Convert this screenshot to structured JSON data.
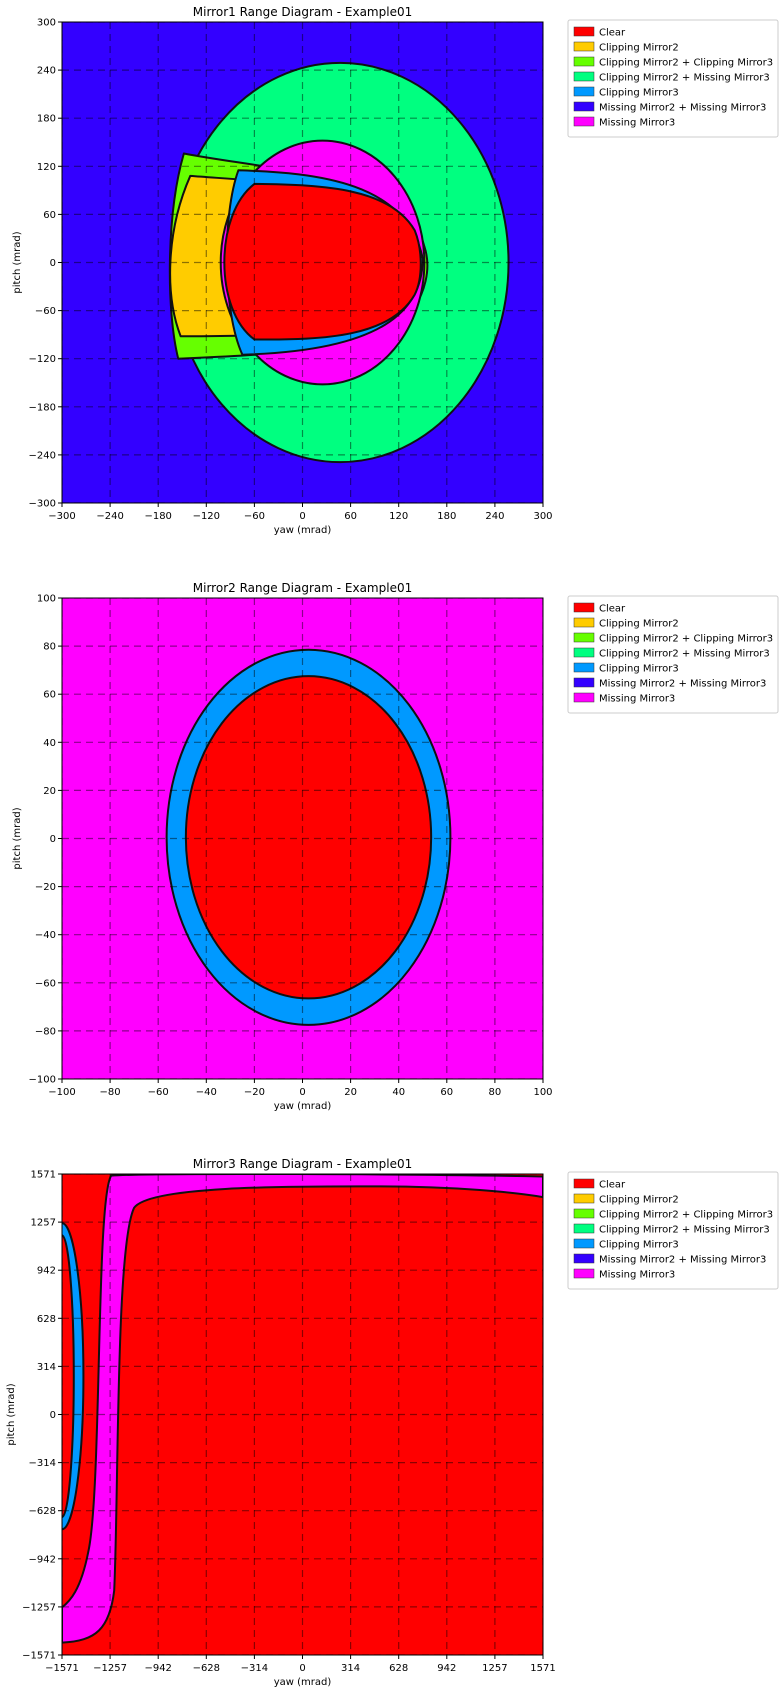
{
  "legend_entries": [
    {
      "label": "Clear",
      "color": "#ff0000"
    },
    {
      "label": "Clipping Mirror2",
      "color": "#ffcc00"
    },
    {
      "label": "Clipping Mirror2 + Clipping Mirror3",
      "color": "#66ff00"
    },
    {
      "label": "Clipping Mirror2 + Missing Mirror3",
      "color": "#00ff80"
    },
    {
      "label": "Clipping Mirror3",
      "color": "#0099ff"
    },
    {
      "label": "Missing Mirror2 + Missing Mirror3",
      "color": "#3300ff"
    },
    {
      "label": "Missing Mirror3",
      "color": "#ff00ff"
    }
  ],
  "chart_data": [
    {
      "type": "heatmap",
      "title": "Mirror1 Range Diagram - Example01",
      "xlabel": "yaw (mrad)",
      "ylabel": "pitch (mrad)",
      "xlim": [
        -300,
        300
      ],
      "ylim": [
        -300,
        300
      ],
      "xticks": [
        "−300",
        "−240",
        "−180",
        "−120",
        "−60",
        "0",
        "60",
        "120",
        "180",
        "240",
        "300"
      ],
      "yticks": [
        "−300",
        "−240",
        "−180",
        "−120",
        "−60",
        "0",
        "60",
        "120",
        "180",
        "240",
        "300"
      ],
      "grid": true,
      "legend": "right-outside",
      "background": "Missing Mirror2 + Missing Mirror3",
      "regions": [
        {
          "name": "Clipping Mirror2 + Missing Mirror3",
          "shape": "ellipse",
          "center": [
            47,
            0
          ],
          "radii": [
            210,
            249
          ]
        },
        {
          "name": "Clipping Mirror2 + Clipping Mirror3",
          "shape": "band",
          "x_range": [
            -165,
            160
          ],
          "y_range": [
            -120,
            140
          ]
        },
        {
          "name": "Clipping Mirror2",
          "shape": "band",
          "x_range": [
            -165,
            150
          ],
          "y_range": [
            -90,
            110
          ]
        },
        {
          "name": "Missing Mirror3",
          "shape": "ellipse",
          "center": [
            25,
            0
          ],
          "radii": [
            127,
            152
          ]
        },
        {
          "name": "Clipping Mirror3",
          "shape": "band",
          "x_range": [
            -105,
            150
          ],
          "y_range": [
            -115,
            115
          ]
        },
        {
          "name": "Clear",
          "shape": "region",
          "x_range": [
            -103,
            148
          ],
          "y_range": [
            -96,
            96
          ]
        }
      ]
    },
    {
      "type": "heatmap",
      "title": "Mirror2 Range Diagram - Example01",
      "xlabel": "yaw (mrad)",
      "ylabel": "pitch (mrad)",
      "xlim": [
        -100,
        100
      ],
      "ylim": [
        -100,
        100
      ],
      "xticks": [
        "−100",
        "−80",
        "−60",
        "−40",
        "−20",
        "0",
        "20",
        "40",
        "60",
        "80",
        "100"
      ],
      "yticks": [
        "−100",
        "−80",
        "−60",
        "−40",
        "−20",
        "0",
        "20",
        "40",
        "60",
        "80",
        "100"
      ],
      "grid": true,
      "legend": "right-outside",
      "background": "Missing Mirror3",
      "regions": [
        {
          "name": "Clipping Mirror3",
          "shape": "ellipse",
          "center": [
            2.5,
            0.5
          ],
          "radii": [
            59,
            78
          ]
        },
        {
          "name": "Clear",
          "shape": "ellipse",
          "center": [
            2.5,
            0.5
          ],
          "radii": [
            51,
            67
          ]
        }
      ]
    },
    {
      "type": "heatmap",
      "title": "Mirror3 Range Diagram - Example01",
      "xlabel": "yaw (mrad)",
      "ylabel": "pitch (mrad)",
      "xlim": [
        -1571,
        1571
      ],
      "ylim": [
        -1571,
        1571
      ],
      "xticks": [
        "−1571",
        "−1257",
        "−942",
        "−628",
        "−314",
        "0",
        "314",
        "628",
        "942",
        "1257",
        "1571"
      ],
      "yticks": [
        "−1571",
        "−1257",
        "−942",
        "−628",
        "−314",
        "0",
        "314",
        "628",
        "942",
        "1257",
        "1571"
      ],
      "grid": true,
      "legend": "right-outside",
      "background": "Clear",
      "regions": [
        {
          "name": "Missing Mirror3",
          "shape": "region",
          "x_range": [
            -1571,
            1571
          ],
          "y_range": [
            -1571,
            1571
          ]
        },
        {
          "name": "Clear",
          "shape": "region",
          "x_range": [
            -1180,
            1571
          ],
          "y_range": [
            -1571,
            1480
          ]
        },
        {
          "name": "Clipping Mirror3",
          "shape": "ellipse",
          "center": [
            -1571,
            250
          ],
          "radii": [
            140,
            1000
          ]
        }
      ]
    }
  ]
}
